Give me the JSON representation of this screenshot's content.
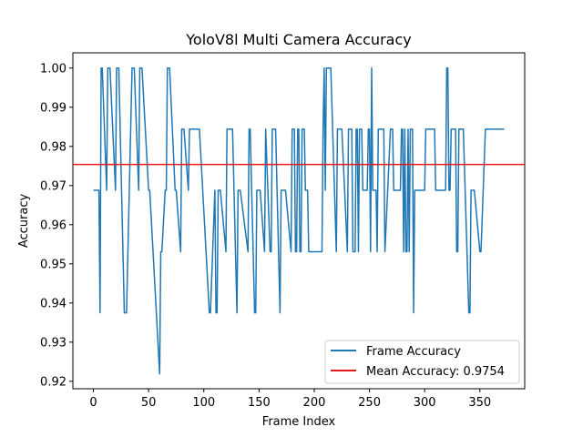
{
  "chart_data": {
    "type": "line",
    "title": "YoloV8l Multi Camera Accuracy",
    "xlabel": "Frame Index",
    "ylabel": "Accuracy",
    "xlim": [
      -18.6,
      390.6
    ],
    "ylim": [
      0.9181,
      1.0039
    ],
    "xticks": [
      0,
      50,
      100,
      150,
      200,
      250,
      300,
      350
    ],
    "yticks": [
      0.92,
      0.93,
      0.94,
      0.95,
      0.96,
      0.97,
      0.98,
      0.99,
      1.0
    ],
    "ytick_labels": [
      "0.92",
      "0.93",
      "0.94",
      "0.95",
      "0.96",
      "0.97",
      "0.98",
      "0.99",
      "1.00"
    ],
    "grid": false,
    "legend_position": "lower-right",
    "colors": {
      "series": "#1f77b4",
      "mean": "#e31a1c"
    },
    "series": [
      {
        "name": "Frame Accuracy",
        "x": [
          0,
          5,
          6,
          7,
          8,
          12,
          13,
          14,
          15,
          20,
          21,
          22,
          23,
          28,
          29,
          30,
          35,
          36,
          37,
          41,
          42,
          43,
          44,
          50,
          51,
          60,
          61,
          62,
          65,
          66,
          67,
          68,
          69,
          74,
          75,
          79,
          80,
          81,
          82,
          86,
          87,
          88,
          89,
          90,
          91,
          95,
          96,
          105,
          106,
          110,
          111,
          112,
          113,
          114,
          115,
          120,
          121,
          122,
          123,
          124,
          125,
          126,
          130,
          131,
          132,
          133,
          140,
          141,
          142,
          146,
          147,
          148,
          149,
          150,
          151,
          155,
          156,
          160,
          161,
          162,
          163,
          164,
          165,
          169,
          170,
          171,
          172,
          173,
          174,
          179,
          180,
          181,
          182,
          183,
          184,
          185,
          186,
          187,
          188,
          189,
          190,
          191,
          192,
          193,
          194,
          195,
          196,
          199,
          200,
          201,
          207,
          208,
          209,
          210,
          211,
          212,
          213,
          214,
          215,
          220,
          221,
          222,
          223,
          224,
          225,
          230,
          231,
          232,
          233,
          234,
          235,
          236,
          237,
          238,
          239,
          240,
          241,
          242,
          243,
          244,
          245,
          246,
          247,
          248,
          249,
          250,
          251,
          252,
          253,
          255,
          256,
          257,
          258,
          259,
          260,
          261,
          262,
          263,
          264,
          269,
          270,
          271,
          272,
          277,
          278,
          279,
          280,
          281,
          282,
          283,
          284,
          285,
          286,
          287,
          288,
          289,
          290,
          291,
          292,
          300,
          301,
          302,
          303,
          309,
          310,
          311,
          312,
          318,
          319,
          320,
          321,
          322,
          323,
          324,
          325,
          326,
          327,
          328,
          329,
          330,
          331,
          332,
          333,
          334,
          335,
          340,
          341,
          342,
          343,
          344,
          345,
          350,
          351,
          355,
          356,
          357,
          358,
          359,
          372
        ],
        "values": [
          0.9688,
          0.9688,
          0.9375,
          1.0,
          1.0,
          0.9688,
          1.0,
          1.0,
          1.0,
          0.9688,
          1.0,
          1.0,
          1.0,
          0.9375,
          0.9375,
          0.9375,
          1.0,
          1.0,
          1.0,
          0.9688,
          1.0,
          1.0,
          1.0,
          0.9688,
          0.9688,
          0.9219,
          0.9531,
          0.9531,
          0.9688,
          0.9688,
          1.0,
          1.0,
          1.0,
          0.9688,
          0.9688,
          0.9531,
          0.9844,
          0.9844,
          0.9844,
          0.9688,
          0.9844,
          0.9844,
          0.9844,
          0.9844,
          0.9844,
          0.9844,
          0.9844,
          0.9375,
          0.9375,
          0.9688,
          0.9375,
          0.9375,
          0.9688,
          0.9688,
          0.9688,
          0.9531,
          0.9844,
          0.9844,
          0.9844,
          0.9844,
          0.9844,
          0.9844,
          0.9375,
          0.9688,
          0.9688,
          0.9688,
          0.9531,
          0.9844,
          0.9844,
          0.9375,
          0.9375,
          0.9688,
          0.9688,
          0.9688,
          0.9688,
          0.9531,
          0.9844,
          0.9531,
          0.9531,
          0.9844,
          0.9844,
          0.9844,
          0.9844,
          0.9375,
          0.9688,
          0.9688,
          0.9688,
          0.9688,
          0.9688,
          0.9531,
          0.9844,
          0.9844,
          0.9844,
          0.9531,
          0.9531,
          0.9844,
          0.9844,
          0.9531,
          0.9531,
          0.9844,
          0.9844,
          0.9844,
          0.9688,
          0.9688,
          0.9688,
          0.9531,
          0.9531,
          0.9531,
          0.9531,
          0.9531,
          0.9531,
          0.9844,
          1.0,
          0.9688,
          1.0,
          1.0,
          1.0,
          1.0,
          1.0,
          0.9531,
          0.9844,
          0.9844,
          0.9844,
          0.9844,
          0.9844,
          0.9531,
          0.9844,
          0.9844,
          0.9844,
          0.9844,
          0.9531,
          0.9531,
          0.9531,
          0.9844,
          0.9844,
          0.9531,
          0.9844,
          0.9844,
          0.9844,
          0.9688,
          0.9688,
          0.9688,
          0.9688,
          0.9688,
          0.9844,
          0.9844,
          0.9531,
          1.0,
          0.9688,
          0.9688,
          0.9688,
          0.9531,
          0.9844,
          0.9844,
          0.9844,
          0.9844,
          0.9844,
          0.9844,
          0.9531,
          0.9844,
          0.9844,
          0.9844,
          0.9688,
          0.9688,
          0.9688,
          0.9844,
          0.9844,
          0.9531,
          0.9844,
          0.9531,
          0.9531,
          0.9844,
          0.9531,
          0.9844,
          0.9844,
          0.9844,
          0.9375,
          0.9688,
          0.9688,
          0.9688,
          0.9844,
          0.9844,
          0.9844,
          0.9844,
          0.9688,
          0.9688,
          0.9688,
          0.9688,
          0.9688,
          1.0,
          1.0,
          0.9688,
          0.9688,
          0.9844,
          0.9844,
          0.9844,
          0.9844,
          0.9844,
          0.9531,
          0.9531,
          0.9844,
          0.9844,
          0.9844,
          0.9844,
          0.9844,
          0.9375,
          0.9375,
          0.9688,
          0.9688,
          0.9688,
          0.9688,
          0.9531,
          0.9531,
          0.9844,
          0.9844,
          0.9844,
          0.9844,
          0.9844,
          0.9844
        ]
      },
      {
        "name": "Mean Accuracy: 0.9754",
        "type": "hline",
        "value": 0.9754
      }
    ]
  }
}
